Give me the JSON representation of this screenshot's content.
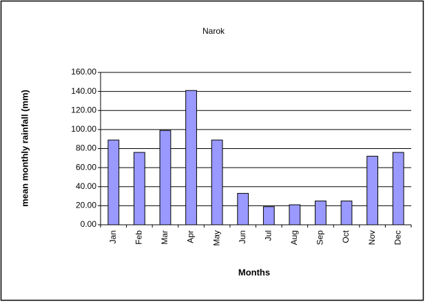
{
  "chart_data": {
    "type": "bar",
    "title": "Narok",
    "x_label": "Months",
    "y_label": "mean monthly rainfall (mm)",
    "categories": [
      "Jan",
      "Feb",
      "Mar",
      "Apr",
      "May",
      "Jun",
      "Jul",
      "Aug",
      "Sep",
      "Oct",
      "Nov",
      "Dec"
    ],
    "values": [
      89,
      76,
      99,
      141,
      89,
      33,
      19,
      21,
      25,
      25,
      72,
      76
    ],
    "color": "#9999ff",
    "ylim": [
      0,
      160
    ],
    "yticks": [
      {
        "value": 0,
        "label": "0.00"
      },
      {
        "value": 20,
        "label": "20.00"
      },
      {
        "value": 40,
        "label": "40.00"
      },
      {
        "value": 60,
        "label": "60.00"
      },
      {
        "value": 80,
        "label": "80.00"
      },
      {
        "value": 100,
        "label": "100.00"
      },
      {
        "value": 120,
        "label": "120.00"
      },
      {
        "value": 140,
        "label": "140.00"
      },
      {
        "value": 160,
        "label": "160.00"
      }
    ],
    "grid": true
  }
}
